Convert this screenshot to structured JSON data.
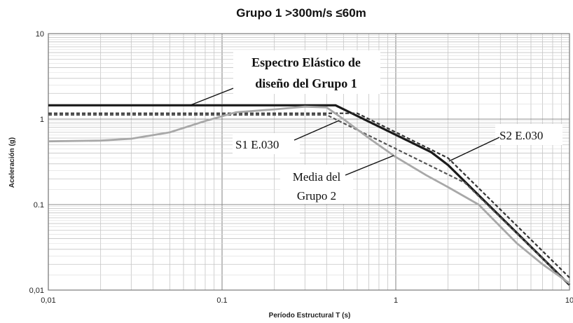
{
  "chart_data": {
    "type": "line",
    "title": "Grupo 1  >300m/s ≤60m",
    "xlabel": "Período Estructural T (s)",
    "ylabel": "Aceleración (g)",
    "xscale": "log",
    "yscale": "log",
    "xlim": [
      0.01,
      10
    ],
    "ylim": [
      0.01,
      10
    ],
    "grid": true,
    "x_ticks": [
      {
        "value": 0.01,
        "label": "0,01"
      },
      {
        "value": 0.1,
        "label": "0.1"
      },
      {
        "value": 1,
        "label": "1"
      },
      {
        "value": 10,
        "label": "10"
      }
    ],
    "y_ticks": [
      {
        "value": 0.01,
        "label": "0,01"
      },
      {
        "value": 0.1,
        "label": "0.1"
      },
      {
        "value": 1,
        "label": "1"
      },
      {
        "value": 10,
        "label": "10"
      }
    ],
    "series": [
      {
        "name": "Espectro Elástico de diseño del Grupo 1",
        "color": "#1a1a1a",
        "style": "solid",
        "x": [
          0.01,
          0.45,
          1.6,
          2.0,
          10
        ],
        "y": [
          1.45,
          1.45,
          0.41,
          0.29,
          0.0115
        ]
      },
      {
        "name": "S1 E.030",
        "color": "#555555",
        "style": "dashed",
        "x": [
          0.01,
          0.4,
          1.0,
          2.5,
          10
        ],
        "y": [
          1.12,
          1.12,
          0.45,
          0.18,
          0.0115
        ]
      },
      {
        "name": "S2 E.030",
        "color": "#333333",
        "style": "dashed",
        "x": [
          0.01,
          0.6,
          2.0,
          10
        ],
        "y": [
          1.17,
          1.17,
          0.35,
          0.014
        ]
      },
      {
        "name": "Media del Grupo 2",
        "color": "#a8a8a8",
        "style": "solid",
        "x": [
          0.01,
          0.02,
          0.03,
          0.05,
          0.08,
          0.12,
          0.2,
          0.3,
          0.4,
          0.5,
          0.7,
          1.0,
          1.5,
          2.0,
          3.0,
          5.0,
          7.0,
          10.0
        ],
        "y": [
          0.55,
          0.56,
          0.59,
          0.7,
          0.95,
          1.2,
          1.3,
          1.4,
          1.37,
          1.0,
          0.6,
          0.36,
          0.22,
          0.16,
          0.1,
          0.035,
          0.02,
          0.012
        ]
      }
    ],
    "annotations": [
      {
        "id": "ann-espectro-1",
        "text": "Espectro Elástico de",
        "bold": true
      },
      {
        "id": "ann-espectro-2",
        "text": "diseño del Grupo 1",
        "bold": true
      },
      {
        "id": "ann-s1",
        "text": "S1 E.030",
        "bold": false
      },
      {
        "id": "ann-s2",
        "text": "S2 E.030",
        "bold": false
      },
      {
        "id": "ann-media-1",
        "text": "Media del",
        "bold": false
      },
      {
        "id": "ann-media-2",
        "text": "Grupo 2",
        "bold": false
      }
    ]
  }
}
